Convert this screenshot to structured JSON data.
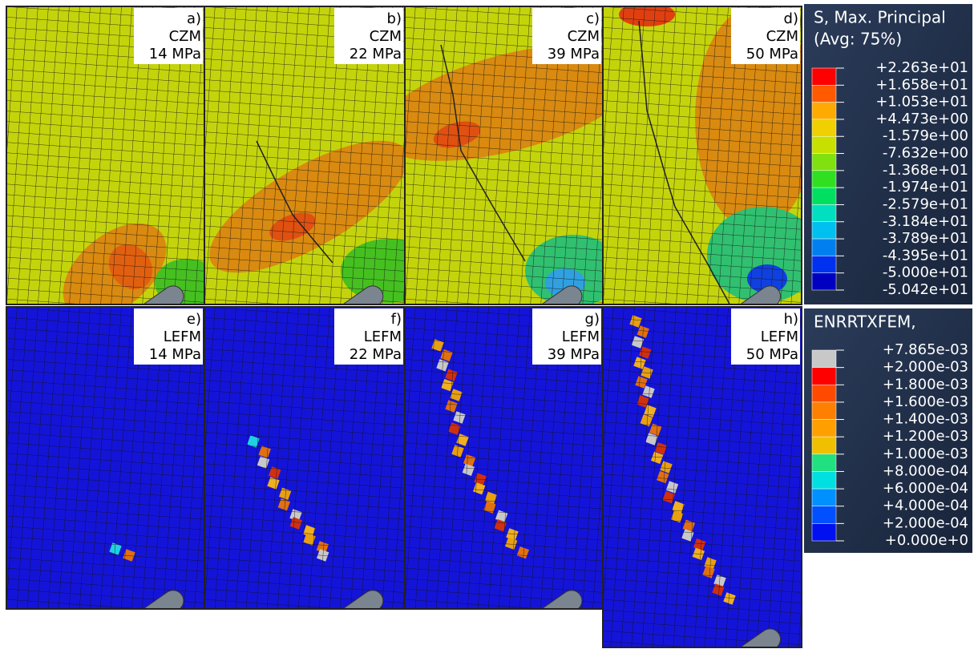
{
  "panels": [
    {
      "letter": "a)",
      "method": "CZM",
      "load": "14 MPa"
    },
    {
      "letter": "b)",
      "method": "CZM",
      "load": "22 MPa"
    },
    {
      "letter": "c)",
      "method": "CZM",
      "load": "39 MPa"
    },
    {
      "letter": "d)",
      "method": "CZM",
      "load": "50 MPa"
    },
    {
      "letter": "e)",
      "method": "LEFM",
      "load": "14 MPa"
    },
    {
      "letter": "f)",
      "method": "LEFM",
      "load": "22 MPa"
    },
    {
      "letter": "g)",
      "method": "LEFM",
      "load": "39 MPa"
    },
    {
      "letter": "h)",
      "method": "LEFM",
      "load": "50 MPa"
    }
  ],
  "legends": [
    {
      "title": [
        "S, Max. Principal",
        "(Avg: 75%)"
      ],
      "values": [
        "+2.263e+01",
        "+1.658e+01",
        "+1.053e+01",
        "+4.473e+00",
        "-1.579e+00",
        "-7.632e+00",
        "-1.368e+01",
        "-1.974e+01",
        "-2.579e+01",
        "-3.184e+01",
        "-3.789e+01",
        "-4.395e+01",
        "-5.000e+01",
        "-5.042e+01"
      ]
    },
    {
      "title": [
        "ENRRTXFEM,"
      ],
      "values": [
        "+7.865e-03",
        "+2.000e-03",
        "+1.800e-03",
        "+1.600e-03",
        "+1.400e-03",
        "+1.200e-03",
        "+1.000e-03",
        "+8.000e-04",
        "+6.000e-04",
        "+4.000e-04",
        "+2.000e-04",
        "+0.000e+0"
      ]
    }
  ]
}
